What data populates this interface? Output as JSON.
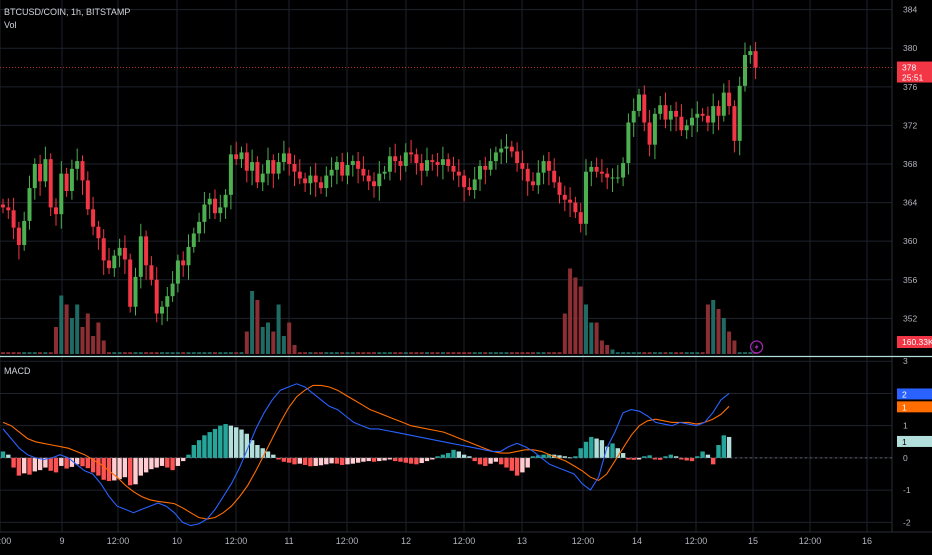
{
  "header": {
    "symbol": "BTCUSD/COIN, 1h, BITSTAMP",
    "volume_label": "Vol"
  },
  "macd_label": "MACD",
  "price_badge": {
    "value": "378",
    "countdown": "25:51",
    "color": "#f23645"
  },
  "volume_badge": {
    "value": "160.33K",
    "color": "#f23645"
  },
  "colors": {
    "up": "#4caf50",
    "down": "#f23645",
    "vol_up": "#1f6b63",
    "vol_down": "#8c2f34",
    "macd_line": "#2962ff",
    "signal_line": "#ff6d00",
    "hist_pos_strong": "#26a69a",
    "hist_pos_weak": "#b2dfdb",
    "hist_neg_strong": "#ff5252",
    "hist_neg_weak": "#ffcdd2"
  },
  "chart_data": [
    {
      "type": "candlestick",
      "price_axis_ticks": [
        352,
        356,
        360,
        364,
        368,
        372,
        376,
        380,
        384
      ],
      "ylim": [
        348.2,
        385.0
      ],
      "last_price": 378,
      "x_tick_labels": [
        "12:00",
        "9",
        "12:00",
        "10",
        "12:00",
        "11",
        "12:00",
        "12",
        "12:00",
        "13",
        "12:00",
        "14",
        "12:00",
        "15",
        "12:00",
        "16"
      ],
      "close": [
        363.5,
        363.2,
        361.4,
        359.6,
        362.1,
        365.5,
        368.0,
        366.2,
        368.5,
        363.5,
        362.8,
        367.0,
        365.2,
        367.5,
        368.3,
        366.3,
        363.3,
        361.5,
        360.3,
        358.0,
        357.2,
        358.5,
        359.3,
        358.1,
        353.2,
        356.3,
        360.5,
        357.5,
        356.0,
        352.5,
        353.2,
        354.3,
        355.6,
        358.0,
        357.5,
        359.4,
        360.8,
        362.0,
        363.8,
        364.4,
        362.9,
        363.5,
        364.8,
        369.0,
        368.5,
        369.2,
        367.3,
        368.2,
        366.1,
        367.0,
        368.4,
        367.0,
        368.2,
        369.1,
        368.0,
        367.2,
        366.5,
        366.0,
        366.8,
        366.1,
        365.5,
        366.8,
        367.4,
        368.2,
        366.8,
        367.9,
        368.3,
        367.5,
        366.8,
        366.2,
        365.7,
        367.0,
        367.2,
        368.8,
        368.3,
        367.8,
        369.2,
        369.0,
        368.1,
        367.3,
        368.4,
        368.2,
        367.9,
        368.5,
        367.8,
        367.2,
        366.8,
        365.6,
        365.3,
        366.4,
        367.8,
        367.4,
        368.3,
        369.2,
        369.6,
        369.8,
        369.3,
        368.1,
        367.5,
        366.2,
        365.8,
        367.1,
        368.3,
        367.3,
        366.1,
        364.8,
        364.3,
        364.0,
        363.0,
        361.8,
        367.2,
        367.7,
        367.2,
        367.0,
        366.6,
        366.6,
        366.6,
        368.1,
        372.3,
        373.5,
        375.2,
        372.3,
        370.0,
        373.2,
        374.1,
        372.6,
        373.5,
        372.9,
        371.5,
        372.0,
        372.8,
        373.2,
        373.0,
        372.3,
        374.0,
        373.0,
        375.4,
        374.0,
        370.4,
        376.1,
        379.3,
        379.7,
        378.0
      ],
      "open_hint": "each candle opens at previous close"
    },
    {
      "type": "bar",
      "title": "Vol",
      "last_value": "160.33K",
      "clusters": [
        {
          "start": 10,
          "values": [
            30,
            65,
            55,
            40,
            55,
            30,
            45,
            20,
            35,
            15
          ]
        },
        {
          "start": 46,
          "values": [
            25,
            70,
            60,
            30,
            35,
            25,
            55,
            20,
            35,
            10
          ]
        },
        {
          "start": 106,
          "values": [
            45,
            95,
            85,
            75,
            55,
            35,
            35,
            15,
            10,
            5
          ]
        },
        {
          "start": 133,
          "values": [
            55,
            60,
            50,
            40,
            25,
            15
          ]
        }
      ],
      "baseline_volume": 2
    },
    {
      "type": "line",
      "title": "MACD",
      "ylim": [
        -2.3,
        3.1
      ],
      "y_ticks": [
        -2,
        -1,
        0,
        1,
        2,
        3
      ],
      "series_badges": [
        {
          "label": "2",
          "color": "#2962ff"
        },
        {
          "label": "1",
          "color": "#ff6d00"
        },
        {
          "label": "1",
          "color": "#b2dfdb"
        }
      ],
      "histogram": [
        0.2,
        0.1,
        -0.3,
        -0.55,
        -0.48,
        -0.52,
        -0.42,
        -0.38,
        -0.3,
        -0.4,
        -0.45,
        -0.25,
        -0.33,
        -0.28,
        -0.2,
        -0.26,
        -0.32,
        -0.45,
        -0.55,
        -0.68,
        -0.72,
        -0.7,
        -0.66,
        -0.6,
        -0.85,
        -0.82,
        -0.55,
        -0.45,
        -0.35,
        -0.3,
        -0.25,
        -0.3,
        -0.38,
        -0.25,
        -0.1,
        0.1,
        0.4,
        0.55,
        0.7,
        0.8,
        0.9,
        1.0,
        1.05,
        1.0,
        0.95,
        0.88,
        0.75,
        0.55,
        0.4,
        0.3,
        0.2,
        0.1,
        -0.05,
        -0.12,
        -0.15,
        -0.2,
        -0.18,
        -0.22,
        -0.26,
        -0.25,
        -0.23,
        -0.2,
        -0.17,
        -0.18,
        -0.22,
        -0.2,
        -0.18,
        -0.15,
        -0.12,
        -0.1,
        -0.12,
        -0.1,
        -0.08,
        -0.05,
        -0.1,
        -0.12,
        -0.15,
        -0.18,
        -0.2,
        -0.16,
        -0.1,
        -0.05,
        0.05,
        0.1,
        0.15,
        0.25,
        0.2,
        0.1,
        0.05,
        -0.1,
        -0.2,
        -0.25,
        -0.18,
        -0.12,
        -0.2,
        -0.3,
        -0.4,
        -0.55,
        -0.45,
        -0.3,
        0.05,
        0.08,
        0.1,
        0.12,
        0.1,
        0.08,
        0.05,
        0.02,
        0.05,
        0.3,
        0.5,
        0.65,
        0.6,
        0.55,
        0.35,
        0.45,
        0.3,
        0.15,
        -0.05,
        -0.06,
        -0.05,
        0.05,
        0.08,
        -0.05,
        -0.06,
        0.05,
        0.1,
        0.05,
        -0.05,
        -0.08,
        -0.1,
        0.05,
        0.2,
        0.1,
        -0.2,
        0.4,
        0.7,
        0.65
      ],
      "macd_line": [
        0.9,
        0.6,
        0.3,
        0.1,
        0.0,
        -0.05,
        0.0,
        0.1,
        0.0,
        -0.2,
        -0.4,
        -0.5,
        -0.8,
        -1.2,
        -1.5,
        -1.6,
        -1.7,
        -1.6,
        -1.5,
        -1.4,
        -1.5,
        -1.7,
        -2.0,
        -2.1,
        -2.05,
        -1.9,
        -1.6,
        -1.2,
        -0.8,
        -0.3,
        0.3,
        0.9,
        1.4,
        1.8,
        2.1,
        2.2,
        2.3,
        2.2,
        2.0,
        1.8,
        1.6,
        1.5,
        1.3,
        1.1,
        1.0,
        0.9,
        0.9,
        0.85,
        0.8,
        0.75,
        0.7,
        0.65,
        0.6,
        0.55,
        0.5,
        0.45,
        0.4,
        0.35,
        0.3,
        0.25,
        0.2,
        0.2,
        0.35,
        0.45,
        0.35,
        0.2,
        0.0,
        -0.2,
        -0.3,
        -0.4,
        -0.5,
        -0.8,
        -1.0,
        -0.6,
        0.3,
        0.8,
        1.4,
        1.5,
        1.45,
        1.3,
        1.1,
        1.05,
        1.0,
        1.1,
        1.05,
        1.0,
        1.1,
        1.4,
        1.8,
        2.0
      ],
      "signal_line": [
        1.1,
        1.0,
        0.8,
        0.6,
        0.5,
        0.45,
        0.4,
        0.35,
        0.3,
        0.2,
        0.1,
        -0.05,
        -0.2,
        -0.4,
        -0.6,
        -0.85,
        -1.05,
        -1.2,
        -1.3,
        -1.35,
        -1.38,
        -1.42,
        -1.55,
        -1.7,
        -1.85,
        -1.9,
        -1.85,
        -1.7,
        -1.5,
        -1.2,
        -0.85,
        -0.4,
        0.1,
        0.6,
        1.1,
        1.55,
        1.9,
        2.1,
        2.25,
        2.25,
        2.2,
        2.1,
        1.95,
        1.8,
        1.65,
        1.5,
        1.4,
        1.3,
        1.2,
        1.1,
        1.0,
        0.95,
        0.9,
        0.85,
        0.8,
        0.7,
        0.6,
        0.5,
        0.4,
        0.3,
        0.2,
        0.15,
        0.15,
        0.2,
        0.25,
        0.25,
        0.2,
        0.1,
        0.0,
        -0.1,
        -0.25,
        -0.4,
        -0.6,
        -0.7,
        -0.5,
        -0.1,
        0.3,
        0.7,
        1.0,
        1.15,
        1.2,
        1.15,
        1.1,
        1.1,
        1.1,
        1.05,
        1.1,
        1.2,
        1.35,
        1.6
      ]
    }
  ]
}
